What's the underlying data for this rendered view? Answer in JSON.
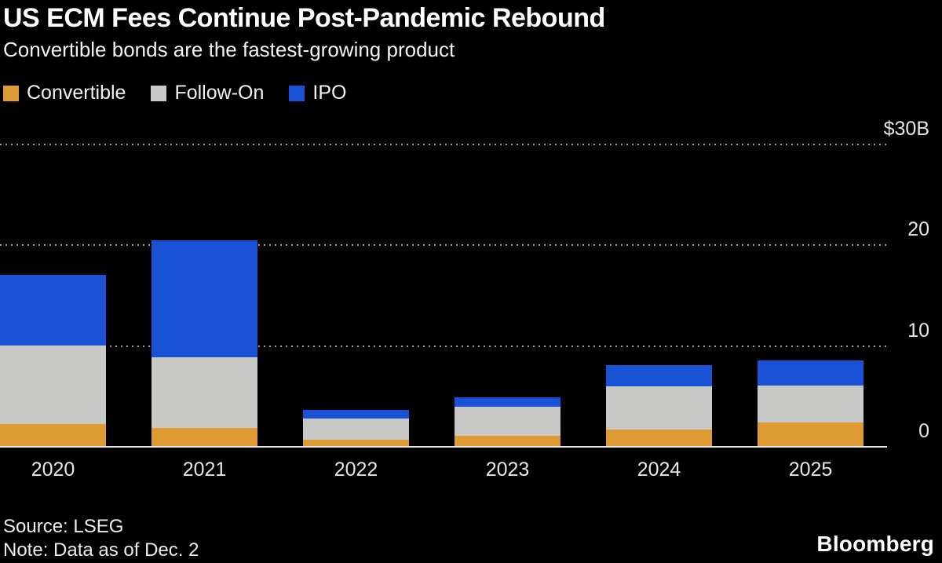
{
  "header": {
    "title": "US ECM Fees Continue Post-Pandemic Rebound",
    "subtitle": "Convertible bonds are the fastest-growing product"
  },
  "footer": {
    "source": "Source: LSEG",
    "note": "Note: Data as of Dec. 2",
    "brand": "Bloomberg"
  },
  "colors": {
    "background": "#000000",
    "text": "#ffffff",
    "gridline": "#9a9a9a",
    "axis_line": "#e9e9e9",
    "convertible": "#DE9A33",
    "follow_on": "#C8C8C6",
    "ipo": "#1A52D6"
  },
  "chart_data": {
    "type": "bar",
    "stacked": true,
    "title": "US ECM Fees Continue Post-Pandemic Rebound",
    "subtitle": "Convertible bonds are the fastest-growing product",
    "unit": "USD billions",
    "categories": [
      "2020",
      "2021",
      "2022",
      "2023",
      "2024",
      "2025"
    ],
    "series": [
      {
        "name": "Convertible",
        "color": "#DE9A33",
        "values": [
          2.2,
          1.8,
          0.6,
          1.0,
          1.6,
          2.3
        ]
      },
      {
        "name": "Follow-On",
        "color": "#C8C8C6",
        "values": [
          7.8,
          7.0,
          2.1,
          2.9,
          4.3,
          3.7
        ]
      },
      {
        "name": "IPO",
        "color": "#1A52D6",
        "values": [
          7.0,
          11.6,
          0.9,
          0.9,
          2.1,
          2.5
        ]
      }
    ],
    "ylim": [
      0,
      30
    ],
    "yticks": [
      {
        "value": 30,
        "label": "$30B"
      },
      {
        "value": 20,
        "label": "20"
      },
      {
        "value": 10,
        "label": "10"
      },
      {
        "value": 0,
        "label": "0"
      }
    ],
    "grid": "horizontal dotted",
    "legend_position": "top-left",
    "legend_entries": [
      "Convertible",
      "Follow-On",
      "IPO"
    ]
  }
}
